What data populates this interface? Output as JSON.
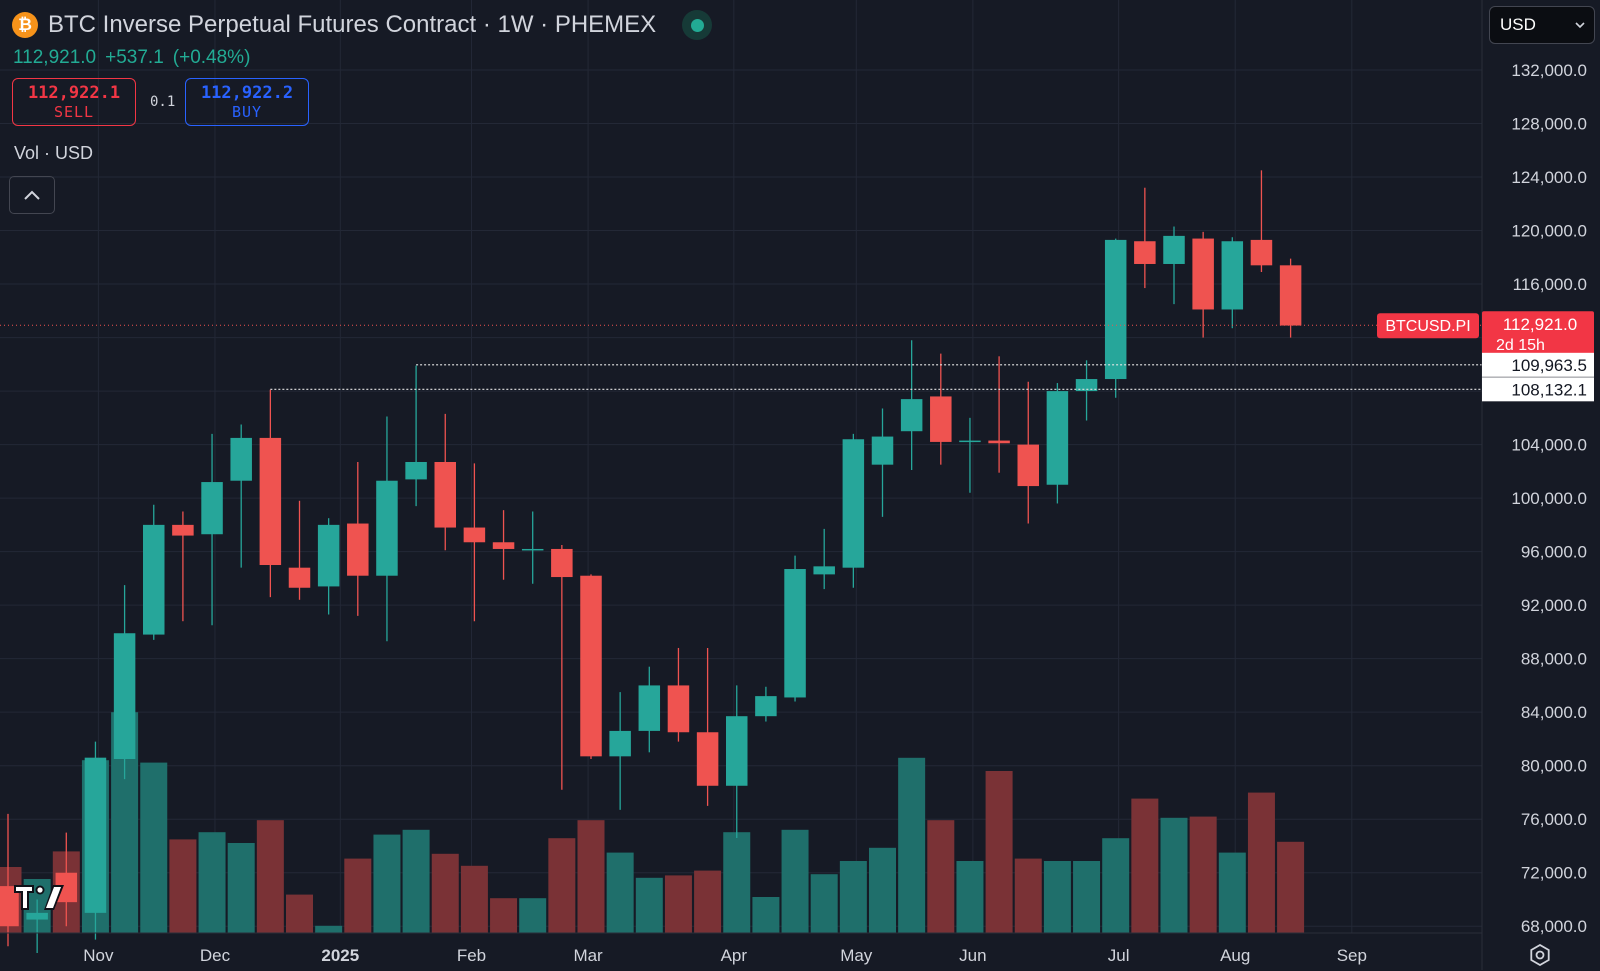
{
  "header": {
    "coin_glyph": "₿",
    "title": "BTC Inverse Perpetual Futures Contract · 1W · PHEMEX",
    "last": "112,921.0",
    "change": "+537.1",
    "change_pct": "(+0.48%)"
  },
  "trade": {
    "sell_price": "112,922.1",
    "sell_label": "SELL",
    "spread": "0.1",
    "buy_price": "112,922.2",
    "buy_label": "BUY"
  },
  "volume_label": "Vol · USD",
  "currency_select": "USD",
  "colors": {
    "up": "#26a69a",
    "down": "#ef5350",
    "bg": "#161a25",
    "grid": "#232836"
  },
  "icons": [
    "bitcoin-icon",
    "live-status-icon",
    "chevron-up-icon",
    "chevron-down-icon",
    "settings-icon",
    "tradingview-logo"
  ],
  "chart_data": {
    "type": "candlestick",
    "symbol_tag": "BTCUSD.PI",
    "countdown": "2d 15h",
    "price_ticks": [
      "132,000.0",
      "128,000.0",
      "124,000.0",
      "120,000.0",
      "116,000.0",
      "104,000.0",
      "100,000.0",
      "96,000.0",
      "92,000.0",
      "88,000.0",
      "84,000.0",
      "80,000.0",
      "76,000.0",
      "72,000.0",
      "68,000.0"
    ],
    "price_tick_values": [
      132000,
      128000,
      124000,
      120000,
      116000,
      104000,
      100000,
      96000,
      92000,
      88000,
      84000,
      80000,
      76000,
      72000,
      68000
    ],
    "ylim": [
      66000,
      135400
    ],
    "last_price": 112921.0,
    "last_price_label": "112,921.0",
    "horizontal_lines": [
      {
        "value": 109963.5,
        "label": "109,963.5",
        "start_week": 14
      },
      {
        "value": 108132.1,
        "label": "108,132.1",
        "start_week": 9
      }
    ],
    "x_labels": [
      {
        "label": "Nov",
        "week": 3.1,
        "bold": false
      },
      {
        "label": "Dec",
        "week": 7.1,
        "bold": false
      },
      {
        "label": "2025",
        "week": 11.4,
        "bold": true
      },
      {
        "label": "Feb",
        "week": 15.9,
        "bold": false
      },
      {
        "label": "Mar",
        "week": 19.9,
        "bold": false
      },
      {
        "label": "Apr",
        "week": 24.9,
        "bold": false
      },
      {
        "label": "May",
        "week": 29.1,
        "bold": false
      },
      {
        "label": "Jun",
        "week": 33.1,
        "bold": false
      },
      {
        "label": "Jul",
        "week": 38.1,
        "bold": false
      },
      {
        "label": "Aug",
        "week": 42.1,
        "bold": false
      },
      {
        "label": "Sep",
        "week": 46.1,
        "bold": false
      }
    ],
    "candles": [
      {
        "o": 71000,
        "h": 76400,
        "l": 66500,
        "c": 68000
      },
      {
        "o": 68500,
        "h": 70000,
        "l": 66000,
        "c": 69000
      },
      {
        "o": 72000,
        "h": 75000,
        "l": 68000,
        "c": 69800
      },
      {
        "o": 69000,
        "h": 81800,
        "l": 67000,
        "c": 80600
      },
      {
        "o": 80500,
        "h": 93500,
        "l": 79000,
        "c": 89900
      },
      {
        "o": 89800,
        "h": 99500,
        "l": 89400,
        "c": 98000
      },
      {
        "o": 98000,
        "h": 99000,
        "l": 90800,
        "c": 97200
      },
      {
        "o": 97300,
        "h": 104800,
        "l": 90500,
        "c": 101200
      },
      {
        "o": 101300,
        "h": 105500,
        "l": 94800,
        "c": 104500
      },
      {
        "o": 104500,
        "h": 108100,
        "l": 92600,
        "c": 95000
      },
      {
        "o": 94800,
        "h": 99800,
        "l": 92400,
        "c": 93300
      },
      {
        "o": 93400,
        "h": 98500,
        "l": 91300,
        "c": 98000
      },
      {
        "o": 98100,
        "h": 102700,
        "l": 91200,
        "c": 94200
      },
      {
        "o": 94200,
        "h": 106100,
        "l": 89300,
        "c": 101300
      },
      {
        "o": 101400,
        "h": 109900,
        "l": 99400,
        "c": 102700
      },
      {
        "o": 102700,
        "h": 106300,
        "l": 96100,
        "c": 97800
      },
      {
        "o": 97800,
        "h": 102600,
        "l": 90800,
        "c": 96700
      },
      {
        "o": 96700,
        "h": 99100,
        "l": 93900,
        "c": 96200
      },
      {
        "o": 96200,
        "h": 99000,
        "l": 93600,
        "c": 96200
      },
      {
        "o": 96200,
        "h": 96500,
        "l": 78200,
        "c": 94100
      },
      {
        "o": 94200,
        "h": 94300,
        "l": 80500,
        "c": 80700
      },
      {
        "o": 80700,
        "h": 85500,
        "l": 76700,
        "c": 82600
      },
      {
        "o": 82600,
        "h": 87400,
        "l": 81000,
        "c": 86000
      },
      {
        "o": 86000,
        "h": 88800,
        "l": 81800,
        "c": 82500
      },
      {
        "o": 82500,
        "h": 88800,
        "l": 77000,
        "c": 78500
      },
      {
        "o": 78500,
        "h": 86000,
        "l": 74600,
        "c": 83700
      },
      {
        "o": 83700,
        "h": 85900,
        "l": 83300,
        "c": 85200
      },
      {
        "o": 85100,
        "h": 95700,
        "l": 84800,
        "c": 94700
      },
      {
        "o": 94300,
        "h": 97700,
        "l": 93200,
        "c": 94900
      },
      {
        "o": 94800,
        "h": 104800,
        "l": 93300,
        "c": 104400
      },
      {
        "o": 102500,
        "h": 106700,
        "l": 98600,
        "c": 104600
      },
      {
        "o": 105000,
        "h": 111800,
        "l": 102100,
        "c": 107400
      },
      {
        "o": 107600,
        "h": 110800,
        "l": 102500,
        "c": 104200
      },
      {
        "o": 104200,
        "h": 106000,
        "l": 100400,
        "c": 104300
      },
      {
        "o": 104300,
        "h": 110600,
        "l": 101900,
        "c": 104100
      },
      {
        "o": 104000,
        "h": 108700,
        "l": 98100,
        "c": 100900
      },
      {
        "o": 101000,
        "h": 108600,
        "l": 99600,
        "c": 108000
      },
      {
        "o": 108000,
        "h": 110300,
        "l": 105800,
        "c": 108900
      },
      {
        "o": 108900,
        "h": 119400,
        "l": 107500,
        "c": 119300
      },
      {
        "o": 119200,
        "h": 123200,
        "l": 115700,
        "c": 117500
      },
      {
        "o": 117500,
        "h": 120300,
        "l": 114500,
        "c": 119600
      },
      {
        "o": 119400,
        "h": 119900,
        "l": 112000,
        "c": 114100
      },
      {
        "o": 114100,
        "h": 119500,
        "l": 112700,
        "c": 119200
      },
      {
        "o": 119300,
        "h": 124500,
        "l": 116900,
        "c": 117400
      },
      {
        "o": 117400,
        "h": 117900,
        "l": 112000,
        "c": 112900
      }
    ],
    "volumes": [
      0.55,
      0.45,
      0.68,
      1.44,
      1.84,
      1.42,
      0.78,
      0.84,
      0.75,
      0.94,
      0.32,
      0.06,
      0.62,
      0.82,
      0.86,
      0.66,
      0.56,
      0.29,
      0.29,
      0.79,
      0.94,
      0.67,
      0.46,
      0.48,
      0.52,
      0.84,
      0.3,
      0.86,
      0.49,
      0.6,
      0.71,
      1.46,
      0.94,
      0.6,
      1.35,
      0.62,
      0.6,
      0.6,
      0.79,
      1.12,
      0.96,
      0.97,
      0.67,
      1.17,
      0.76
    ]
  }
}
